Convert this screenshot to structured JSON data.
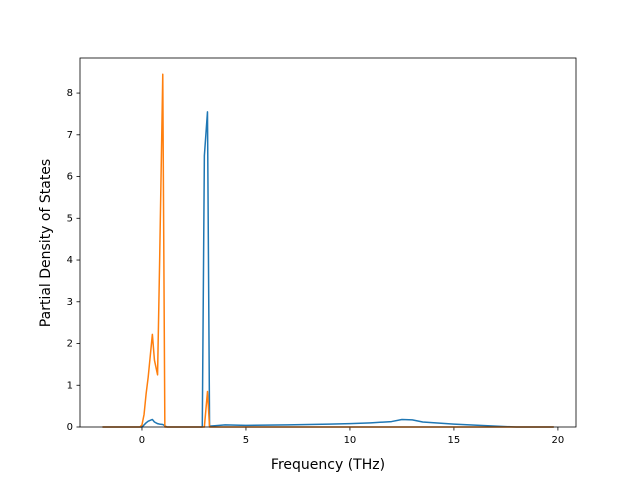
{
  "chart_data": {
    "type": "line",
    "x_label": "Frequency (THz)",
    "y_label": "Partial Density of States",
    "x": [
      -1.9,
      -0.1,
      0,
      0.1,
      0.2,
      0.3,
      0.5,
      0.6,
      0.75,
      0.85,
      1.0,
      1.1,
      1.2,
      2.9,
      3.0,
      3.15,
      3.25,
      3.5,
      4,
      5,
      7,
      9,
      10,
      11,
      12,
      12.5,
      13,
      13.5,
      15,
      17,
      18,
      19.8
    ],
    "series": [
      {
        "color": "#1f77b4",
        "values": [
          0,
          0,
          0,
          0.05,
          0.1,
          0.14,
          0.18,
          0.12,
          0.08,
          0.07,
          0.06,
          0.03,
          0,
          0,
          6.5,
          7.55,
          0.02,
          0.03,
          0.05,
          0.04,
          0.05,
          0.07,
          0.08,
          0.1,
          0.13,
          0.18,
          0.17,
          0.12,
          0.07,
          0.02,
          0,
          0
        ]
      },
      {
        "color": "#ff7f0e",
        "values": [
          0,
          0,
          0.05,
          0.3,
          0.8,
          1.2,
          2.22,
          1.6,
          1.25,
          4,
          8.45,
          0,
          0,
          0,
          0,
          0.85,
          0,
          0,
          0,
          0,
          0,
          0,
          0,
          0,
          0,
          0,
          0,
          0,
          0,
          0,
          0,
          0
        ]
      }
    ],
    "xlim": [
      -2.98,
      20.87
    ],
    "ylim": [
      0,
      8.84
    ],
    "xticks": [
      0,
      5,
      10,
      15,
      20
    ],
    "yticks": [
      0,
      1,
      2,
      3,
      4,
      5,
      6,
      7,
      8
    ]
  }
}
